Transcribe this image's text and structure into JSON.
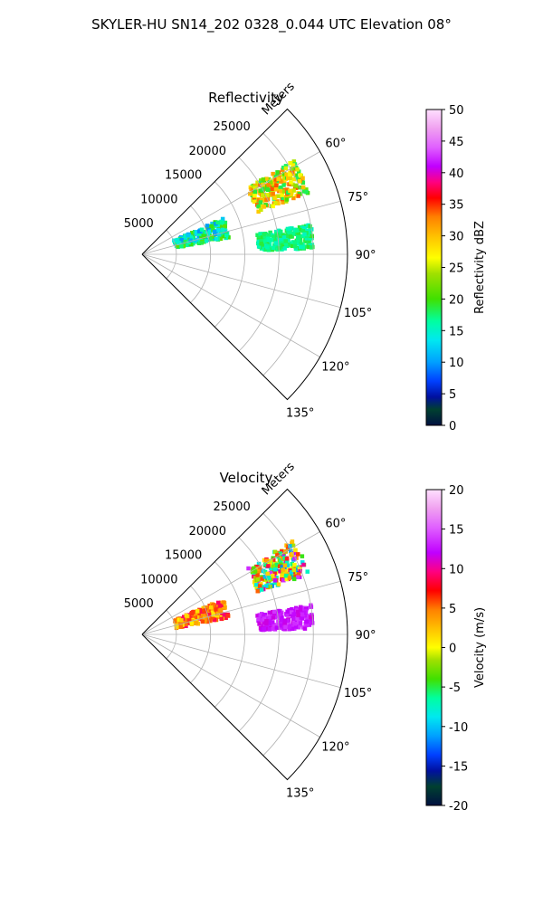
{
  "figure": {
    "title": "SKYLER-HU  SN14_202  0328_0.044 UTC Elevation 08°"
  },
  "chart_data": [
    {
      "type": "heatmap",
      "projection": "polar-sector",
      "title": "Reflectivity",
      "radial_label": "Meters",
      "radial_ticks": [
        5000,
        10000,
        15000,
        20000,
        25000
      ],
      "rlim": [
        0,
        30000
      ],
      "theta_ticks": [
        "60°",
        "75°",
        "90°",
        "105°",
        "120°",
        "135°"
      ],
      "theta_tick_values": [
        60,
        75,
        90,
        105,
        120,
        135
      ],
      "theta_range": [
        45,
        135
      ],
      "grid": true,
      "colorbar": {
        "label": "Reflectivity dBZ",
        "range": [
          0,
          50
        ],
        "ticks": [
          "0",
          "5",
          "10",
          "15",
          "20",
          "25",
          "30",
          "35",
          "40",
          "45",
          "50"
        ]
      },
      "echo_regions": [
        {
          "theta": [
            58,
            70
          ],
          "r": [
            18000,
            26000
          ],
          "dbz": [
            18,
            35
          ]
        },
        {
          "theta": [
            66,
            79
          ],
          "r": [
            5000,
            13000
          ],
          "dbz": [
            10,
            22
          ]
        },
        {
          "theta": [
            80,
            88
          ],
          "r": [
            17000,
            25000
          ],
          "dbz": [
            15,
            20
          ]
        }
      ]
    },
    {
      "type": "heatmap",
      "projection": "polar-sector",
      "title": "Velocity",
      "radial_label": "Meters",
      "radial_ticks": [
        5000,
        10000,
        15000,
        20000,
        25000
      ],
      "rlim": [
        0,
        30000
      ],
      "theta_ticks": [
        "60°",
        "75°",
        "90°",
        "105°",
        "120°",
        "135°"
      ],
      "theta_tick_values": [
        60,
        75,
        90,
        105,
        120,
        135
      ],
      "theta_range": [
        45,
        135
      ],
      "grid": true,
      "colorbar": {
        "label": "Velocity (m/s)",
        "range": [
          -20,
          20
        ],
        "ticks": [
          "-20",
          "-15",
          "-10",
          "-5",
          "0",
          "5",
          "10",
          "15",
          "20"
        ]
      },
      "echo_regions": [
        {
          "theta": [
            58,
            70
          ],
          "r": [
            18000,
            26000
          ],
          "velocity": [
            -12,
            15
          ]
        },
        {
          "theta": [
            66,
            79
          ],
          "r": [
            5000,
            13000
          ],
          "velocity": [
            2,
            10
          ]
        },
        {
          "theta": [
            80,
            88
          ],
          "r": [
            17000,
            25000
          ],
          "velocity": [
            12,
            15
          ]
        }
      ]
    }
  ]
}
